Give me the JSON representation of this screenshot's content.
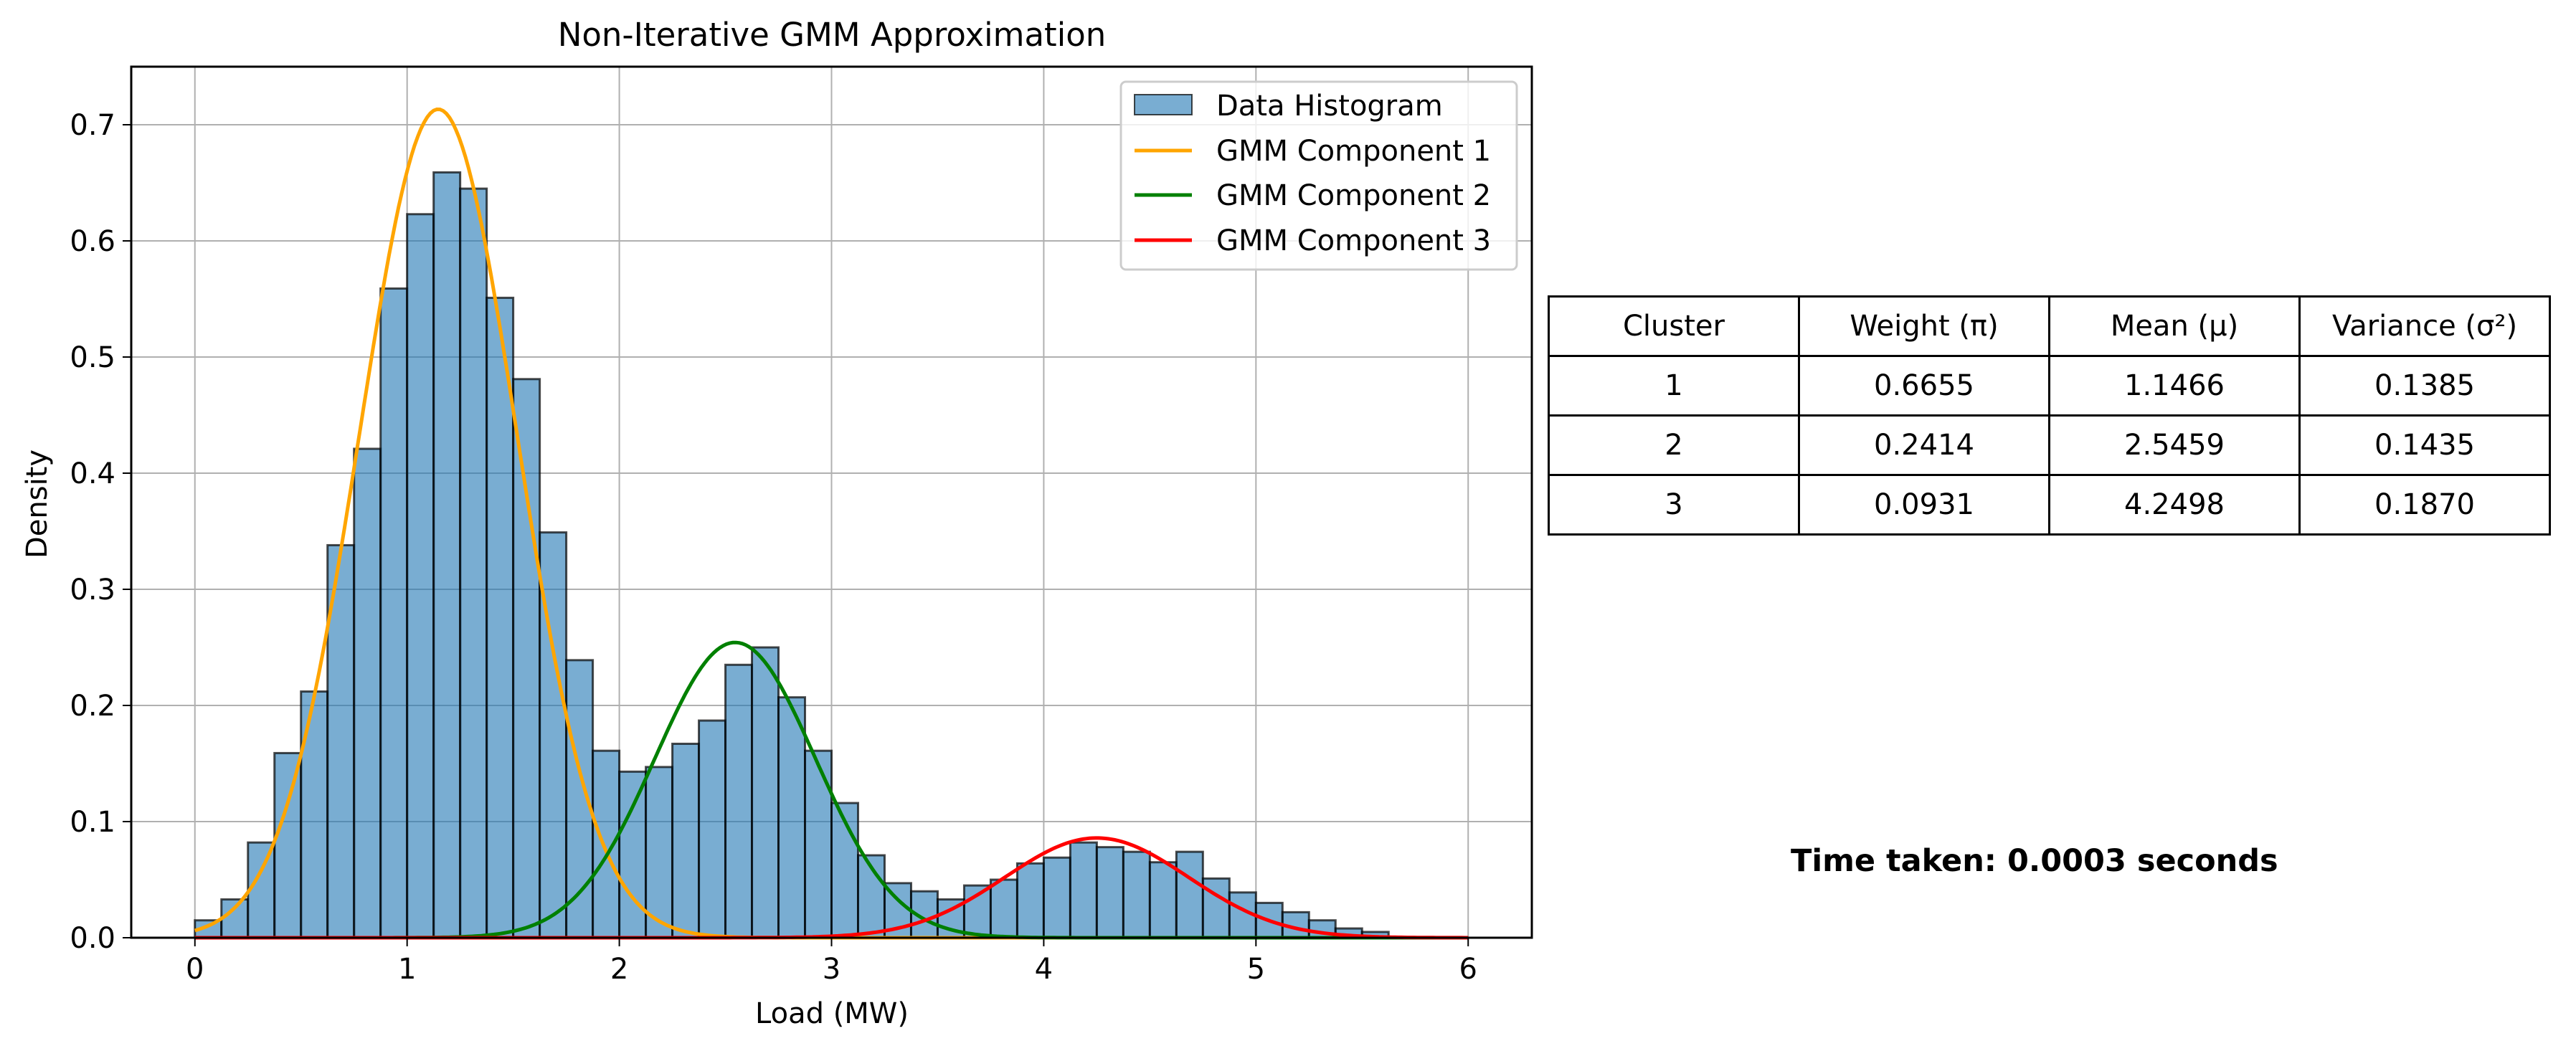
{
  "chart_data": {
    "type": "histogram",
    "title": "Non-Iterative GMM Approximation",
    "xlabel": "Load (MW)",
    "ylabel": "Density",
    "xlim": [
      -0.3,
      6.3
    ],
    "ylim": [
      0,
      0.75
    ],
    "xticks": [
      "0",
      "1",
      "2",
      "3",
      "4",
      "5",
      "6"
    ],
    "yticks": [
      "0.0",
      "0.1",
      "0.2",
      "0.3",
      "0.4",
      "0.5",
      "0.6",
      "0.7"
    ],
    "grid": true,
    "legend_position": "upper right",
    "histogram": {
      "name": "Data Histogram",
      "color": "#1f77b4",
      "bin_start": 0.0,
      "bin_width": 0.125,
      "densities": [
        0.015,
        0.033,
        0.082,
        0.159,
        0.212,
        0.338,
        0.421,
        0.559,
        0.623,
        0.659,
        0.645,
        0.551,
        0.481,
        0.349,
        0.239,
        0.161,
        0.143,
        0.147,
        0.167,
        0.187,
        0.235,
        0.25,
        0.207,
        0.161,
        0.116,
        0.071,
        0.047,
        0.04,
        0.033,
        0.045,
        0.05,
        0.064,
        0.069,
        0.082,
        0.078,
        0.074,
        0.065,
        0.074,
        0.051,
        0.039,
        0.03,
        0.022,
        0.015,
        0.008,
        0.005
      ]
    },
    "series": [
      {
        "name": "GMM Component 1",
        "color": "#ffa500",
        "weight": 0.6655,
        "mean": 1.1466,
        "variance": 0.1385
      },
      {
        "name": "GMM Component 2",
        "color": "#008000",
        "weight": 0.2414,
        "mean": 2.5459,
        "variance": 0.1435
      },
      {
        "name": "GMM Component 3",
        "color": "#ff0000",
        "weight": 0.0931,
        "mean": 4.2498,
        "variance": 0.187
      }
    ],
    "curve_x_range": [
      0,
      6
    ]
  },
  "table": {
    "headers": [
      "Cluster",
      "Weight (π)",
      "Mean (μ)",
      "Variance (σ²)"
    ],
    "rows": [
      [
        "1",
        "0.6655",
        "1.1466",
        "0.1385"
      ],
      [
        "2",
        "0.2414",
        "2.5459",
        "0.1435"
      ],
      [
        "3",
        "0.0931",
        "4.2498",
        "0.1870"
      ]
    ]
  },
  "time_text": "Time taken: 0.0003 seconds"
}
